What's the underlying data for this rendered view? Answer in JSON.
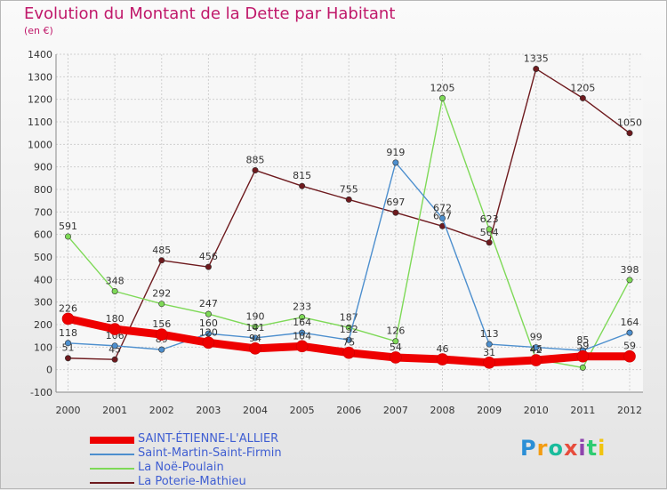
{
  "title": "Evolution du Montant de la Dette par Habitant",
  "subtitle": "(en €)",
  "logo": {
    "text": "Proxiti",
    "colors": [
      "#2b8fd6",
      "#f39c12",
      "#1abc9c",
      "#e74c3c",
      "#8e44ad",
      "#2ecc71",
      "#f1c40f"
    ]
  },
  "chart_data": {
    "type": "line",
    "x": [
      "2000",
      "2001",
      "2002",
      "2003",
      "2004",
      "2005",
      "2006",
      "2007",
      "2008",
      "2009",
      "2010",
      "2011",
      "2012"
    ],
    "ylim": [
      -100,
      1400
    ],
    "yticks": [
      "-100",
      "0",
      "100",
      "200",
      "300",
      "400",
      "500",
      "600",
      "700",
      "800",
      "900",
      "1000",
      "1100",
      "1200",
      "1300",
      "1400"
    ],
    "grid": true,
    "legend_position": "bottom",
    "series": [
      {
        "name": "La Poterie-Mathieu",
        "color": "#6e1a1e",
        "values": [
          51,
          45,
          485,
          456,
          885,
          815,
          755,
          697,
          637,
          564,
          1335,
          1205,
          1050
        ],
        "labels": [
          "51",
          "45",
          "485",
          "456",
          "885",
          "815",
          "755",
          "697",
          "637",
          "564",
          "1335",
          "1205",
          "1050"
        ]
      },
      {
        "name": "La Noë-Poulain",
        "color": "#7ed957",
        "values": [
          591,
          348,
          292,
          247,
          190,
          233,
          187,
          126,
          1205,
          623,
          46,
          9,
          398
        ],
        "labels": [
          "591",
          "348",
          "292",
          "247",
          "190",
          "233",
          "187",
          "126",
          "1205",
          "623",
          "46",
          "9",
          "398"
        ]
      },
      {
        "name": "Saint-Martin-Saint-Firmin",
        "color": "#4d8fce",
        "values": [
          118,
          106,
          89,
          160,
          141,
          164,
          132,
          919,
          672,
          113,
          99,
          85,
          164
        ],
        "labels": [
          "118",
          "106",
          "89",
          "160",
          "141",
          "164",
          "132",
          "919",
          "672",
          "113",
          "99",
          "85",
          "164"
        ]
      },
      {
        "name": "SAINT-ÉTIENNE-L'ALLIER",
        "color": "#ee0000",
        "values": [
          226,
          180,
          156,
          120,
          94,
          104,
          75,
          54,
          46,
          31,
          42,
          59,
          59
        ],
        "labels": [
          "226",
          "180",
          "156",
          "120",
          "94",
          "104",
          "75",
          "54",
          "46",
          "31",
          "42",
          "59",
          "59"
        ]
      }
    ],
    "legend_order": [
      "SAINT-ÉTIENNE-L'ALLIER",
      "Saint-Martin-Saint-Firmin",
      "La Noë-Poulain",
      "La Poterie-Mathieu"
    ]
  }
}
